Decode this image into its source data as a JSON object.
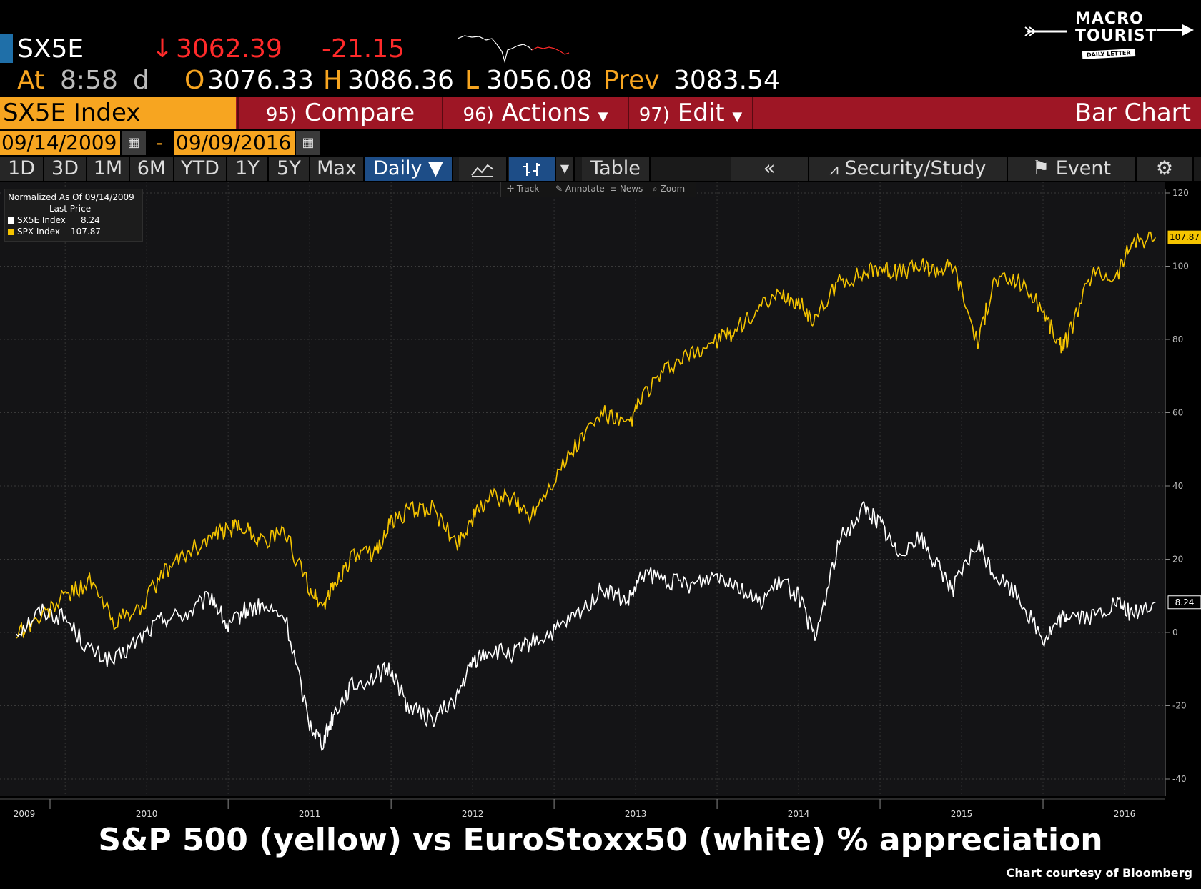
{
  "quote": {
    "ticker": "SX5E",
    "direction_arrow": "↓",
    "last": "3062.39",
    "change": "-21.15",
    "at_label": "At",
    "time": "8:58",
    "time_suffix": "d",
    "open_label": "O",
    "open": "3076.33",
    "high_label": "H",
    "high": "3086.36",
    "low_label": "L",
    "low": "3056.08",
    "prev_label": "Prev",
    "prev": "3083.54"
  },
  "logo": {
    "line1": "MACRO",
    "line2": "TOURIST",
    "line3": "DAILY LETTER"
  },
  "command_bar": {
    "security": "SX5E Index",
    "compare_num": "95)",
    "compare": "Compare",
    "actions_num": "96)",
    "actions": "Actions",
    "edit_num": "97)",
    "edit": "Edit",
    "view": "Bar Chart"
  },
  "date_range": {
    "start": "09/14/2009",
    "separator": "-",
    "end": "09/09/2016"
  },
  "toolbar": {
    "periods": [
      "1D",
      "3D",
      "1M",
      "6M",
      "YTD",
      "1Y",
      "5Y",
      "Max"
    ],
    "frequency": "Daily ▼",
    "table": "Table",
    "back": "«",
    "security_study": "Security/Study",
    "event": "Event"
  },
  "subtoolbar": {
    "track": "Track",
    "annotate": "Annotate",
    "news": "News",
    "zoom": "Zoom"
  },
  "legend": {
    "title": "Normalized As Of 09/14/2009",
    "subtitle": "Last Price",
    "entries": [
      {
        "name": "SX5E Index",
        "value": "8.24",
        "color": "#ffffff"
      },
      {
        "name": "SPX Index",
        "value": "107.87",
        "color": "#f5c400"
      }
    ]
  },
  "chart_data": {
    "type": "line",
    "x": [
      2009.7,
      2009.85,
      2010.0,
      2010.15,
      2010.3,
      2010.45,
      2010.6,
      2010.75,
      2010.9,
      2011.0,
      2011.1,
      2011.2,
      2011.35,
      2011.5,
      2011.58,
      2011.65,
      2011.75,
      2011.9,
      2012.0,
      2012.1,
      2012.25,
      2012.4,
      2012.5,
      2012.6,
      2012.75,
      2012.85,
      2013.0,
      2013.15,
      2013.3,
      2013.45,
      2013.55,
      2013.7,
      2013.85,
      2014.0,
      2014.1,
      2014.25,
      2014.4,
      2014.5,
      2014.6,
      2014.75,
      2014.9,
      2015.0,
      2015.1,
      2015.25,
      2015.35,
      2015.45,
      2015.6,
      2015.7,
      2015.85,
      2016.0,
      2016.1,
      2016.15,
      2016.3,
      2016.45,
      2016.55,
      2016.69
    ],
    "series": [
      {
        "name": "SPX Index",
        "color": "#f5c400",
        "values": [
          0,
          4,
          10,
          14,
          3,
          6,
          16,
          22,
          26,
          28,
          29,
          25,
          27,
          12,
          7,
          13,
          20,
          22,
          30,
          33,
          34,
          24,
          31,
          37,
          36,
          32,
          42,
          52,
          60,
          56,
          65,
          72,
          76,
          80,
          82,
          88,
          92,
          90,
          85,
          96,
          98,
          100,
          98,
          100,
          99,
          100,
          79,
          96,
          96,
          88,
          78,
          80,
          98,
          97,
          107,
          107.87
        ]
      },
      {
        "name": "SX5E Index",
        "color": "#ffffff",
        "values": [
          0,
          6,
          4,
          -5,
          -8,
          -2,
          4,
          5,
          10,
          1,
          6,
          7,
          4,
          -25,
          -30,
          -22,
          -15,
          -12,
          -10,
          -20,
          -24,
          -18,
          -8,
          -5,
          -6,
          -3,
          0,
          5,
          12,
          8,
          16,
          14,
          13,
          16,
          14,
          8,
          14,
          10,
          -2,
          25,
          34,
          30,
          22,
          26,
          18,
          12,
          24,
          16,
          10,
          -2,
          3,
          5,
          4,
          8,
          5,
          8.24
        ]
      }
    ],
    "x_ticks": [
      "2009",
      "2010",
      "2011",
      "2012",
      "2013",
      "2014",
      "2015",
      "2016"
    ],
    "y_ticks": [
      120,
      100,
      80,
      60,
      40,
      20,
      0,
      -20,
      -40
    ],
    "ylim": [
      -40,
      120
    ],
    "last_value_labels": [
      "107.87",
      "8.24"
    ],
    "grid": true,
    "legend_position": "top-left"
  },
  "footer": {
    "caption": "S&P 500 (yellow) vs EuroStoxx50 (white) % appreciation",
    "credit": "Chart courtesy of Bloomberg"
  }
}
